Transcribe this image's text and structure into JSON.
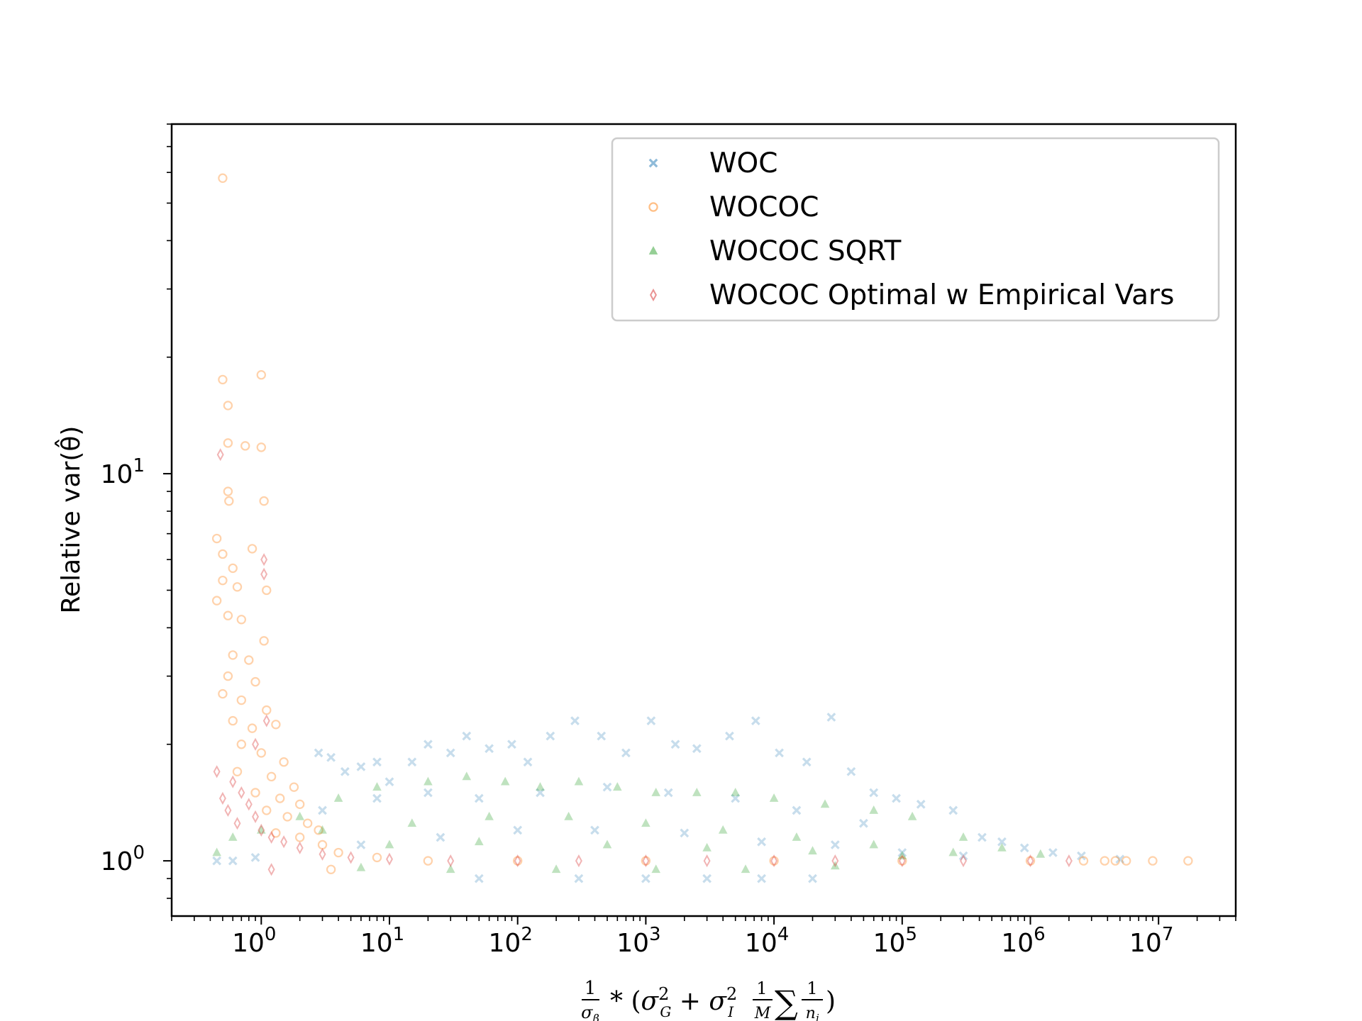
{
  "chart_data": {
    "type": "scatter",
    "title": "",
    "x_scale": "log",
    "y_scale": "log",
    "xlim": [
      0.2,
      40000000
    ],
    "ylim": [
      0.72,
      80
    ],
    "x_ticks": [
      {
        "value": 1,
        "base": "10",
        "exp": "0"
      },
      {
        "value": 10,
        "base": "10",
        "exp": "1"
      },
      {
        "value": 100,
        "base": "10",
        "exp": "2"
      },
      {
        "value": 1000,
        "base": "10",
        "exp": "3"
      },
      {
        "value": 10000,
        "base": "10",
        "exp": "4"
      },
      {
        "value": 100000,
        "base": "10",
        "exp": "5"
      },
      {
        "value": 1000000,
        "base": "10",
        "exp": "6"
      },
      {
        "value": 10000000,
        "base": "10",
        "exp": "7"
      }
    ],
    "y_ticks": [
      {
        "value": 1,
        "base": "10",
        "exp": "0"
      },
      {
        "value": 10,
        "base": "10",
        "exp": "1"
      }
    ],
    "ylabel": "Relative var(θ̂)",
    "xlabel": "1/σβ * (σG² + σI² 1/M ∑ 1/nj)",
    "grid": false,
    "legend_position": "upper right",
    "series": [
      {
        "name": "WOC",
        "marker": "x",
        "color": "#1f77b4",
        "alpha": 0.25,
        "points": [
          [
            0.45,
            1.0
          ],
          [
            0.6,
            1.0
          ],
          [
            0.9,
            1.02
          ],
          [
            2.8,
            1.9
          ],
          [
            3.5,
            1.85
          ],
          [
            4.5,
            1.7
          ],
          [
            6,
            1.75
          ],
          [
            8,
            1.8
          ],
          [
            10,
            1.6
          ],
          [
            15,
            1.8
          ],
          [
            20,
            2.0
          ],
          [
            30,
            1.9
          ],
          [
            40,
            2.1
          ],
          [
            60,
            1.95
          ],
          [
            90,
            2.0
          ],
          [
            120,
            1.8
          ],
          [
            180,
            2.1
          ],
          [
            280,
            2.3
          ],
          [
            450,
            2.1
          ],
          [
            700,
            1.9
          ],
          [
            1100,
            2.3
          ],
          [
            1700,
            2.0
          ],
          [
            2500,
            1.95
          ],
          [
            4500,
            2.1
          ],
          [
            7200,
            2.3
          ],
          [
            11000,
            1.9
          ],
          [
            18000,
            1.8
          ],
          [
            28000,
            2.35
          ],
          [
            40000,
            1.7
          ],
          [
            60000,
            1.5
          ],
          [
            90000,
            1.45
          ],
          [
            140000,
            1.4
          ],
          [
            250000,
            1.35
          ],
          [
            420000,
            1.15
          ],
          [
            600000,
            1.12
          ],
          [
            900000,
            1.08
          ],
          [
            1500000,
            1.05
          ],
          [
            2500000,
            1.03
          ],
          [
            5000000,
            1.01
          ],
          [
            3,
            1.35
          ],
          [
            8,
            1.45
          ],
          [
            20,
            1.5
          ],
          [
            50,
            1.45
          ],
          [
            150,
            1.5
          ],
          [
            500,
            1.55
          ],
          [
            1500,
            1.5
          ],
          [
            5000,
            1.45
          ],
          [
            15000,
            1.35
          ],
          [
            50000,
            1.25
          ],
          [
            6,
            1.1
          ],
          [
            25,
            1.15
          ],
          [
            100,
            1.2
          ],
          [
            400,
            1.2
          ],
          [
            2000,
            1.18
          ],
          [
            8000,
            1.12
          ],
          [
            30000,
            1.1
          ],
          [
            100000,
            1.05
          ],
          [
            300000,
            1.03
          ],
          [
            50,
            0.9
          ],
          [
            300,
            0.9
          ],
          [
            1000,
            0.9
          ],
          [
            3000,
            0.9
          ],
          [
            8000,
            0.9
          ],
          [
            20000,
            0.9
          ]
        ]
      },
      {
        "name": "WOCOC",
        "marker": "o",
        "color": "#ff7f0e",
        "alpha": 0.35,
        "points": [
          [
            0.5,
            58
          ],
          [
            0.5,
            17.5
          ],
          [
            1.0,
            18
          ],
          [
            0.55,
            15
          ],
          [
            0.55,
            12
          ],
          [
            0.75,
            11.8
          ],
          [
            1.0,
            11.7
          ],
          [
            0.55,
            9
          ],
          [
            0.56,
            8.5
          ],
          [
            1.05,
            8.5
          ],
          [
            0.45,
            6.8
          ],
          [
            0.5,
            6.2
          ],
          [
            0.85,
            6.4
          ],
          [
            0.6,
            5.7
          ],
          [
            0.5,
            5.3
          ],
          [
            0.65,
            5.1
          ],
          [
            1.1,
            5.0
          ],
          [
            0.45,
            4.7
          ],
          [
            0.55,
            4.3
          ],
          [
            0.7,
            4.2
          ],
          [
            1.05,
            3.7
          ],
          [
            0.6,
            3.4
          ],
          [
            0.8,
            3.3
          ],
          [
            0.55,
            3.0
          ],
          [
            0.9,
            2.9
          ],
          [
            0.5,
            2.7
          ],
          [
            0.7,
            2.6
          ],
          [
            1.1,
            2.45
          ],
          [
            0.6,
            2.3
          ],
          [
            0.85,
            2.2
          ],
          [
            1.3,
            2.25
          ],
          [
            0.7,
            2.0
          ],
          [
            1.0,
            1.9
          ],
          [
            1.5,
            1.8
          ],
          [
            0.65,
            1.7
          ],
          [
            1.2,
            1.65
          ],
          [
            1.8,
            1.55
          ],
          [
            0.9,
            1.5
          ],
          [
            1.4,
            1.45
          ],
          [
            2.0,
            1.4
          ],
          [
            1.1,
            1.35
          ],
          [
            1.6,
            1.3
          ],
          [
            2.3,
            1.25
          ],
          [
            2.8,
            1.2
          ],
          [
            1.3,
            1.18
          ],
          [
            2.0,
            1.15
          ],
          [
            3.0,
            1.1
          ],
          [
            4.0,
            1.05
          ],
          [
            8,
            1.02
          ],
          [
            20,
            1.0
          ],
          [
            100,
            1.0
          ],
          [
            1000,
            1.0
          ],
          [
            10000,
            1.0
          ],
          [
            100000,
            1.0
          ],
          [
            1000000,
            1.0
          ],
          [
            2600000,
            1.0
          ],
          [
            3800000,
            1.0
          ],
          [
            4600000,
            1.0
          ],
          [
            5600000,
            1.0
          ],
          [
            9000000,
            1.0
          ],
          [
            17000000,
            1.0
          ],
          [
            3.5,
            0.95
          ]
        ]
      },
      {
        "name": "WOCOC SQRT",
        "marker": "^",
        "color": "#2ca02c",
        "alpha": 0.3,
        "points": [
          [
            0.45,
            1.05
          ],
          [
            0.6,
            1.15
          ],
          [
            1.0,
            1.2
          ],
          [
            2,
            1.3
          ],
          [
            4,
            1.45
          ],
          [
            8,
            1.55
          ],
          [
            20,
            1.6
          ],
          [
            40,
            1.65
          ],
          [
            80,
            1.6
          ],
          [
            150,
            1.55
          ],
          [
            300,
            1.6
          ],
          [
            600,
            1.55
          ],
          [
            1200,
            1.5
          ],
          [
            2500,
            1.5
          ],
          [
            5000,
            1.5
          ],
          [
            10000,
            1.45
          ],
          [
            25000,
            1.4
          ],
          [
            60000,
            1.35
          ],
          [
            120000,
            1.3
          ],
          [
            300000,
            1.15
          ],
          [
            600000,
            1.08
          ],
          [
            1200000,
            1.04
          ],
          [
            3,
            1.2
          ],
          [
            15,
            1.25
          ],
          [
            60,
            1.3
          ],
          [
            250,
            1.3
          ],
          [
            1000,
            1.25
          ],
          [
            4000,
            1.2
          ],
          [
            15000,
            1.15
          ],
          [
            60000,
            1.1
          ],
          [
            250000,
            1.05
          ],
          [
            10,
            1.1
          ],
          [
            50,
            1.12
          ],
          [
            500,
            1.1
          ],
          [
            3000,
            1.08
          ],
          [
            20000,
            1.06
          ],
          [
            100000,
            1.03
          ],
          [
            6,
            0.96
          ],
          [
            30,
            0.95
          ],
          [
            200,
            0.95
          ],
          [
            1200,
            0.95
          ],
          [
            6000,
            0.95
          ],
          [
            30000,
            0.97
          ]
        ]
      },
      {
        "name": "WOCOC Optimal w Empirical Vars",
        "marker": "d",
        "color": "#d62728",
        "alpha": 0.35,
        "points": [
          [
            0.48,
            11.2
          ],
          [
            1.05,
            6.0
          ],
          [
            1.05,
            5.5
          ],
          [
            0.45,
            1.7
          ],
          [
            0.6,
            1.6
          ],
          [
            0.7,
            1.5
          ],
          [
            0.5,
            1.45
          ],
          [
            0.8,
            1.4
          ],
          [
            0.55,
            1.35
          ],
          [
            0.9,
            1.3
          ],
          [
            0.65,
            1.25
          ],
          [
            1.0,
            1.2
          ],
          [
            1.2,
            1.15
          ],
          [
            1.5,
            1.12
          ],
          [
            2,
            1.08
          ],
          [
            3,
            1.04
          ],
          [
            5,
            1.02
          ],
          [
            10,
            1.01
          ],
          [
            30,
            1.0
          ],
          [
            100,
            1.0
          ],
          [
            300,
            1.0
          ],
          [
            1000,
            1.0
          ],
          [
            3000,
            1.0
          ],
          [
            10000,
            1.0
          ],
          [
            30000,
            1.0
          ],
          [
            100000,
            1.0
          ],
          [
            300000,
            1.0
          ],
          [
            1000000,
            1.0
          ],
          [
            2000000,
            1.0
          ],
          [
            1.2,
            0.95
          ],
          [
            0.9,
            2.0
          ],
          [
            1.1,
            2.3
          ]
        ]
      }
    ]
  }
}
